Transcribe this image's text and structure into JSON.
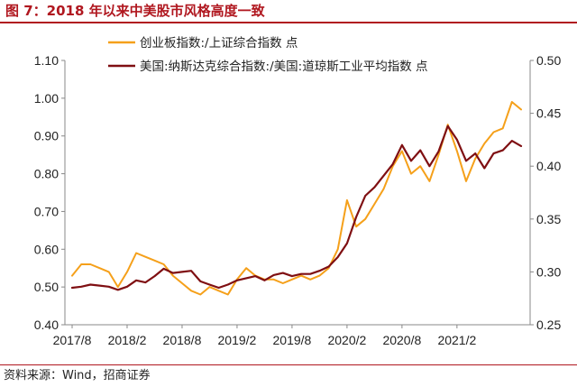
{
  "header": {
    "title": "图 7：2018 年以来中美股市风格高度一致"
  },
  "footer": {
    "source": "资料来源：Wind，招商证券"
  },
  "colors": {
    "title_red": "#b0171f",
    "chinext": "#f5a01a",
    "us_ratio": "#7f0f12"
  },
  "chart_data": {
    "type": "line",
    "title": "",
    "legend_position": "top-center",
    "grid": false,
    "xlabel": "",
    "ylabel_left": "",
    "ylabel_right": "",
    "x_ticks": [
      "2017/8",
      "2018/2",
      "2018/8",
      "2019/2",
      "2019/8",
      "2020/2",
      "2020/8",
      "2021/2"
    ],
    "y_left": {
      "min": 0.4,
      "max": 1.1,
      "ticks": [
        "0.40",
        "0.50",
        "0.60",
        "0.70",
        "0.80",
        "0.90",
        "1.00",
        "1.10"
      ]
    },
    "y_right": {
      "min": 0.25,
      "max": 0.5,
      "ticks": [
        "0.25",
        "0.30",
        "0.35",
        "0.40",
        "0.45",
        "0.50"
      ]
    },
    "x_range": [
      "2017-08",
      "2021-09"
    ],
    "series": [
      {
        "name": "创业板指数:/上证综合指数 点",
        "axis": "left",
        "color": "#f5a01a",
        "points": [
          [
            "2017-08",
            0.53
          ],
          [
            "2017-09",
            0.56
          ],
          [
            "2017-10",
            0.56
          ],
          [
            "2017-11",
            0.55
          ],
          [
            "2017-12",
            0.54
          ],
          [
            "2018-01",
            0.5
          ],
          [
            "2018-02",
            0.54
          ],
          [
            "2018-03",
            0.59
          ],
          [
            "2018-04",
            0.58
          ],
          [
            "2018-05",
            0.57
          ],
          [
            "2018-06",
            0.56
          ],
          [
            "2018-07",
            0.53
          ],
          [
            "2018-08",
            0.51
          ],
          [
            "2018-09",
            0.49
          ],
          [
            "2018-10",
            0.48
          ],
          [
            "2018-11",
            0.5
          ],
          [
            "2018-12",
            0.49
          ],
          [
            "2019-01",
            0.48
          ],
          [
            "2019-02",
            0.52
          ],
          [
            "2019-03",
            0.55
          ],
          [
            "2019-04",
            0.53
          ],
          [
            "2019-05",
            0.52
          ],
          [
            "2019-06",
            0.52
          ],
          [
            "2019-07",
            0.51
          ],
          [
            "2019-08",
            0.52
          ],
          [
            "2019-09",
            0.53
          ],
          [
            "2019-10",
            0.52
          ],
          [
            "2019-11",
            0.53
          ],
          [
            "2019-12",
            0.55
          ],
          [
            "2020-01",
            0.6
          ],
          [
            "2020-02",
            0.73
          ],
          [
            "2020-03",
            0.66
          ],
          [
            "2020-04",
            0.68
          ],
          [
            "2020-05",
            0.72
          ],
          [
            "2020-06",
            0.76
          ],
          [
            "2020-07",
            0.82
          ],
          [
            "2020-08",
            0.86
          ],
          [
            "2020-09",
            0.8
          ],
          [
            "2020-10",
            0.82
          ],
          [
            "2020-11",
            0.78
          ],
          [
            "2020-12",
            0.85
          ],
          [
            "2021-01",
            0.93
          ],
          [
            "2021-02",
            0.86
          ],
          [
            "2021-03",
            0.78
          ],
          [
            "2021-04",
            0.84
          ],
          [
            "2021-05",
            0.88
          ],
          [
            "2021-06",
            0.91
          ],
          [
            "2021-07",
            0.92
          ],
          [
            "2021-08",
            0.99
          ],
          [
            "2021-09",
            0.97
          ]
        ]
      },
      {
        "name": "美国:纳斯达克综合指数:/美国:道琼斯工业平均指数 点",
        "axis": "right",
        "color": "#7f0f12",
        "points": [
          [
            "2017-08",
            0.285
          ],
          [
            "2017-09",
            0.286
          ],
          [
            "2017-10",
            0.288
          ],
          [
            "2017-11",
            0.287
          ],
          [
            "2017-12",
            0.286
          ],
          [
            "2018-01",
            0.283
          ],
          [
            "2018-02",
            0.286
          ],
          [
            "2018-03",
            0.292
          ],
          [
            "2018-04",
            0.29
          ],
          [
            "2018-05",
            0.296
          ],
          [
            "2018-06",
            0.303
          ],
          [
            "2018-07",
            0.299
          ],
          [
            "2018-08",
            0.3
          ],
          [
            "2018-09",
            0.301
          ],
          [
            "2018-10",
            0.291
          ],
          [
            "2018-11",
            0.288
          ],
          [
            "2018-12",
            0.285
          ],
          [
            "2019-01",
            0.288
          ],
          [
            "2019-02",
            0.292
          ],
          [
            "2019-03",
            0.294
          ],
          [
            "2019-04",
            0.296
          ],
          [
            "2019-05",
            0.292
          ],
          [
            "2019-06",
            0.297
          ],
          [
            "2019-07",
            0.299
          ],
          [
            "2019-08",
            0.296
          ],
          [
            "2019-09",
            0.298
          ],
          [
            "2019-10",
            0.298
          ],
          [
            "2019-11",
            0.301
          ],
          [
            "2019-12",
            0.305
          ],
          [
            "2020-01",
            0.314
          ],
          [
            "2020-02",
            0.327
          ],
          [
            "2020-03",
            0.352
          ],
          [
            "2020-04",
            0.372
          ],
          [
            "2020-05",
            0.38
          ],
          [
            "2020-06",
            0.391
          ],
          [
            "2020-07",
            0.402
          ],
          [
            "2020-08",
            0.42
          ],
          [
            "2020-09",
            0.405
          ],
          [
            "2020-10",
            0.415
          ],
          [
            "2020-11",
            0.4
          ],
          [
            "2020-12",
            0.414
          ],
          [
            "2021-01",
            0.438
          ],
          [
            "2021-02",
            0.425
          ],
          [
            "2021-03",
            0.405
          ],
          [
            "2021-04",
            0.412
          ],
          [
            "2021-05",
            0.398
          ],
          [
            "2021-06",
            0.412
          ],
          [
            "2021-07",
            0.415
          ],
          [
            "2021-08",
            0.424
          ],
          [
            "2021-09",
            0.419
          ]
        ]
      }
    ]
  }
}
